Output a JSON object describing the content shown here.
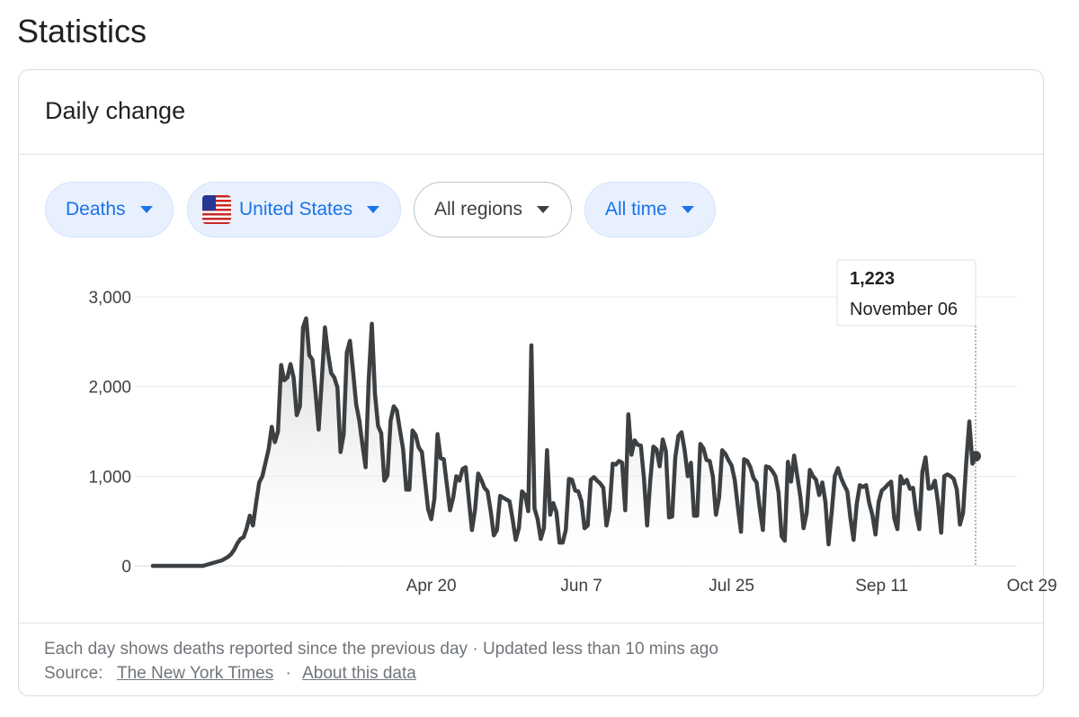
{
  "page": {
    "title": "Statistics"
  },
  "card": {
    "title": "Daily change"
  },
  "filters": {
    "metric": "Deaths",
    "country": "United States",
    "region": "All regions",
    "period": "All time"
  },
  "colors": {
    "line": "#3c4043",
    "accent": "#1a73e8",
    "chip_bg": "#e8f0fe",
    "grid": "#e8eaed"
  },
  "chart_data": {
    "type": "area",
    "series": [
      {
        "name": "Daily deaths",
        "values": [
          0,
          0,
          0,
          0,
          0,
          0,
          0,
          0,
          0,
          0,
          0,
          0,
          0,
          0,
          0,
          0,
          0,
          10,
          20,
          30,
          40,
          50,
          60,
          80,
          100,
          130,
          180,
          250,
          300,
          320,
          420,
          560,
          450,
          700,
          930,
          1000,
          1150,
          1300,
          1550,
          1380,
          1500,
          2240,
          2070,
          2100,
          2250,
          2100,
          1680,
          1780,
          2660,
          2760,
          2350,
          2300,
          1940,
          1520,
          2070,
          2660,
          2370,
          2150,
          2100,
          1990,
          1270,
          1470,
          2380,
          2510,
          2170,
          1800,
          1620,
          1350,
          1100,
          2080,
          2700,
          1920,
          1560,
          1480,
          950,
          1010,
          1620,
          1780,
          1730,
          1510,
          1300,
          850,
          850,
          1510,
          1460,
          1320,
          1270,
          950,
          630,
          520,
          750,
          1470,
          1200,
          1190,
          900,
          620,
          760,
          1000,
          950,
          1080,
          1100,
          740,
          400,
          630,
          1030,
          960,
          870,
          830,
          610,
          340,
          400,
          780,
          760,
          740,
          720,
          520,
          290,
          420,
          830,
          790,
          610,
          2460,
          640,
          520,
          300,
          420,
          1290,
          570,
          700,
          600,
          260,
          260,
          400,
          970,
          960,
          840,
          830,
          720,
          420,
          450,
          960,
          990,
          950,
          920,
          870,
          450,
          630,
          1140,
          1130,
          1170,
          1150,
          620,
          1690,
          1240,
          1400,
          1350,
          1340,
          970,
          450,
          950,
          1330,
          1300,
          1110,
          1410,
          1280,
          540,
          550,
          1210,
          1450,
          1490,
          1290,
          1000,
          1150,
          560,
          560,
          1360,
          1310,
          1180,
          1170,
          1000,
          570,
          760,
          1290,
          1250,
          1180,
          1120,
          960,
          660,
          380,
          1190,
          1170,
          1100,
          980,
          930,
          640,
          400,
          1110,
          1100,
          1060,
          1000,
          820,
          330,
          280,
          1160,
          940,
          1230,
          1000,
          770,
          420,
          590,
          1070,
          1000,
          960,
          790,
          930,
          710,
          240,
          600,
          1000,
          1090,
          980,
          900,
          830,
          530,
          290,
          690,
          900,
          880,
          900,
          700,
          570,
          350,
          710,
          840,
          870,
          910,
          940,
          530,
          410,
          1000,
          920,
          960,
          860,
          870,
          590,
          410,
          1050,
          1210,
          860,
          870,
          950,
          700,
          370,
          1000,
          1020,
          1000,
          970,
          850,
          460,
          590,
          1150,
          1610,
          1140,
          1223
        ]
      }
    ],
    "x_tick_labels": [
      "Apr 20",
      "Jun 7",
      "Jul 25",
      "Sep 11",
      "Oct 29"
    ],
    "x_tick_indices": [
      89,
      137,
      185,
      233,
      281
    ],
    "y_ticks": [
      0,
      1000,
      2000,
      3000
    ],
    "y_tick_labels": [
      "0",
      "1,000",
      "2,000",
      "3,000"
    ],
    "ylim": [
      0,
      3000
    ],
    "tooltip": {
      "value": "1,223",
      "date": "November 06"
    }
  },
  "footer": {
    "description": "Each day shows deaths reported since the previous day · Updated less than 10 mins ago",
    "source_label": "Source:",
    "source_link": "The New York Times",
    "separator": "·",
    "about_link": "About this data"
  }
}
